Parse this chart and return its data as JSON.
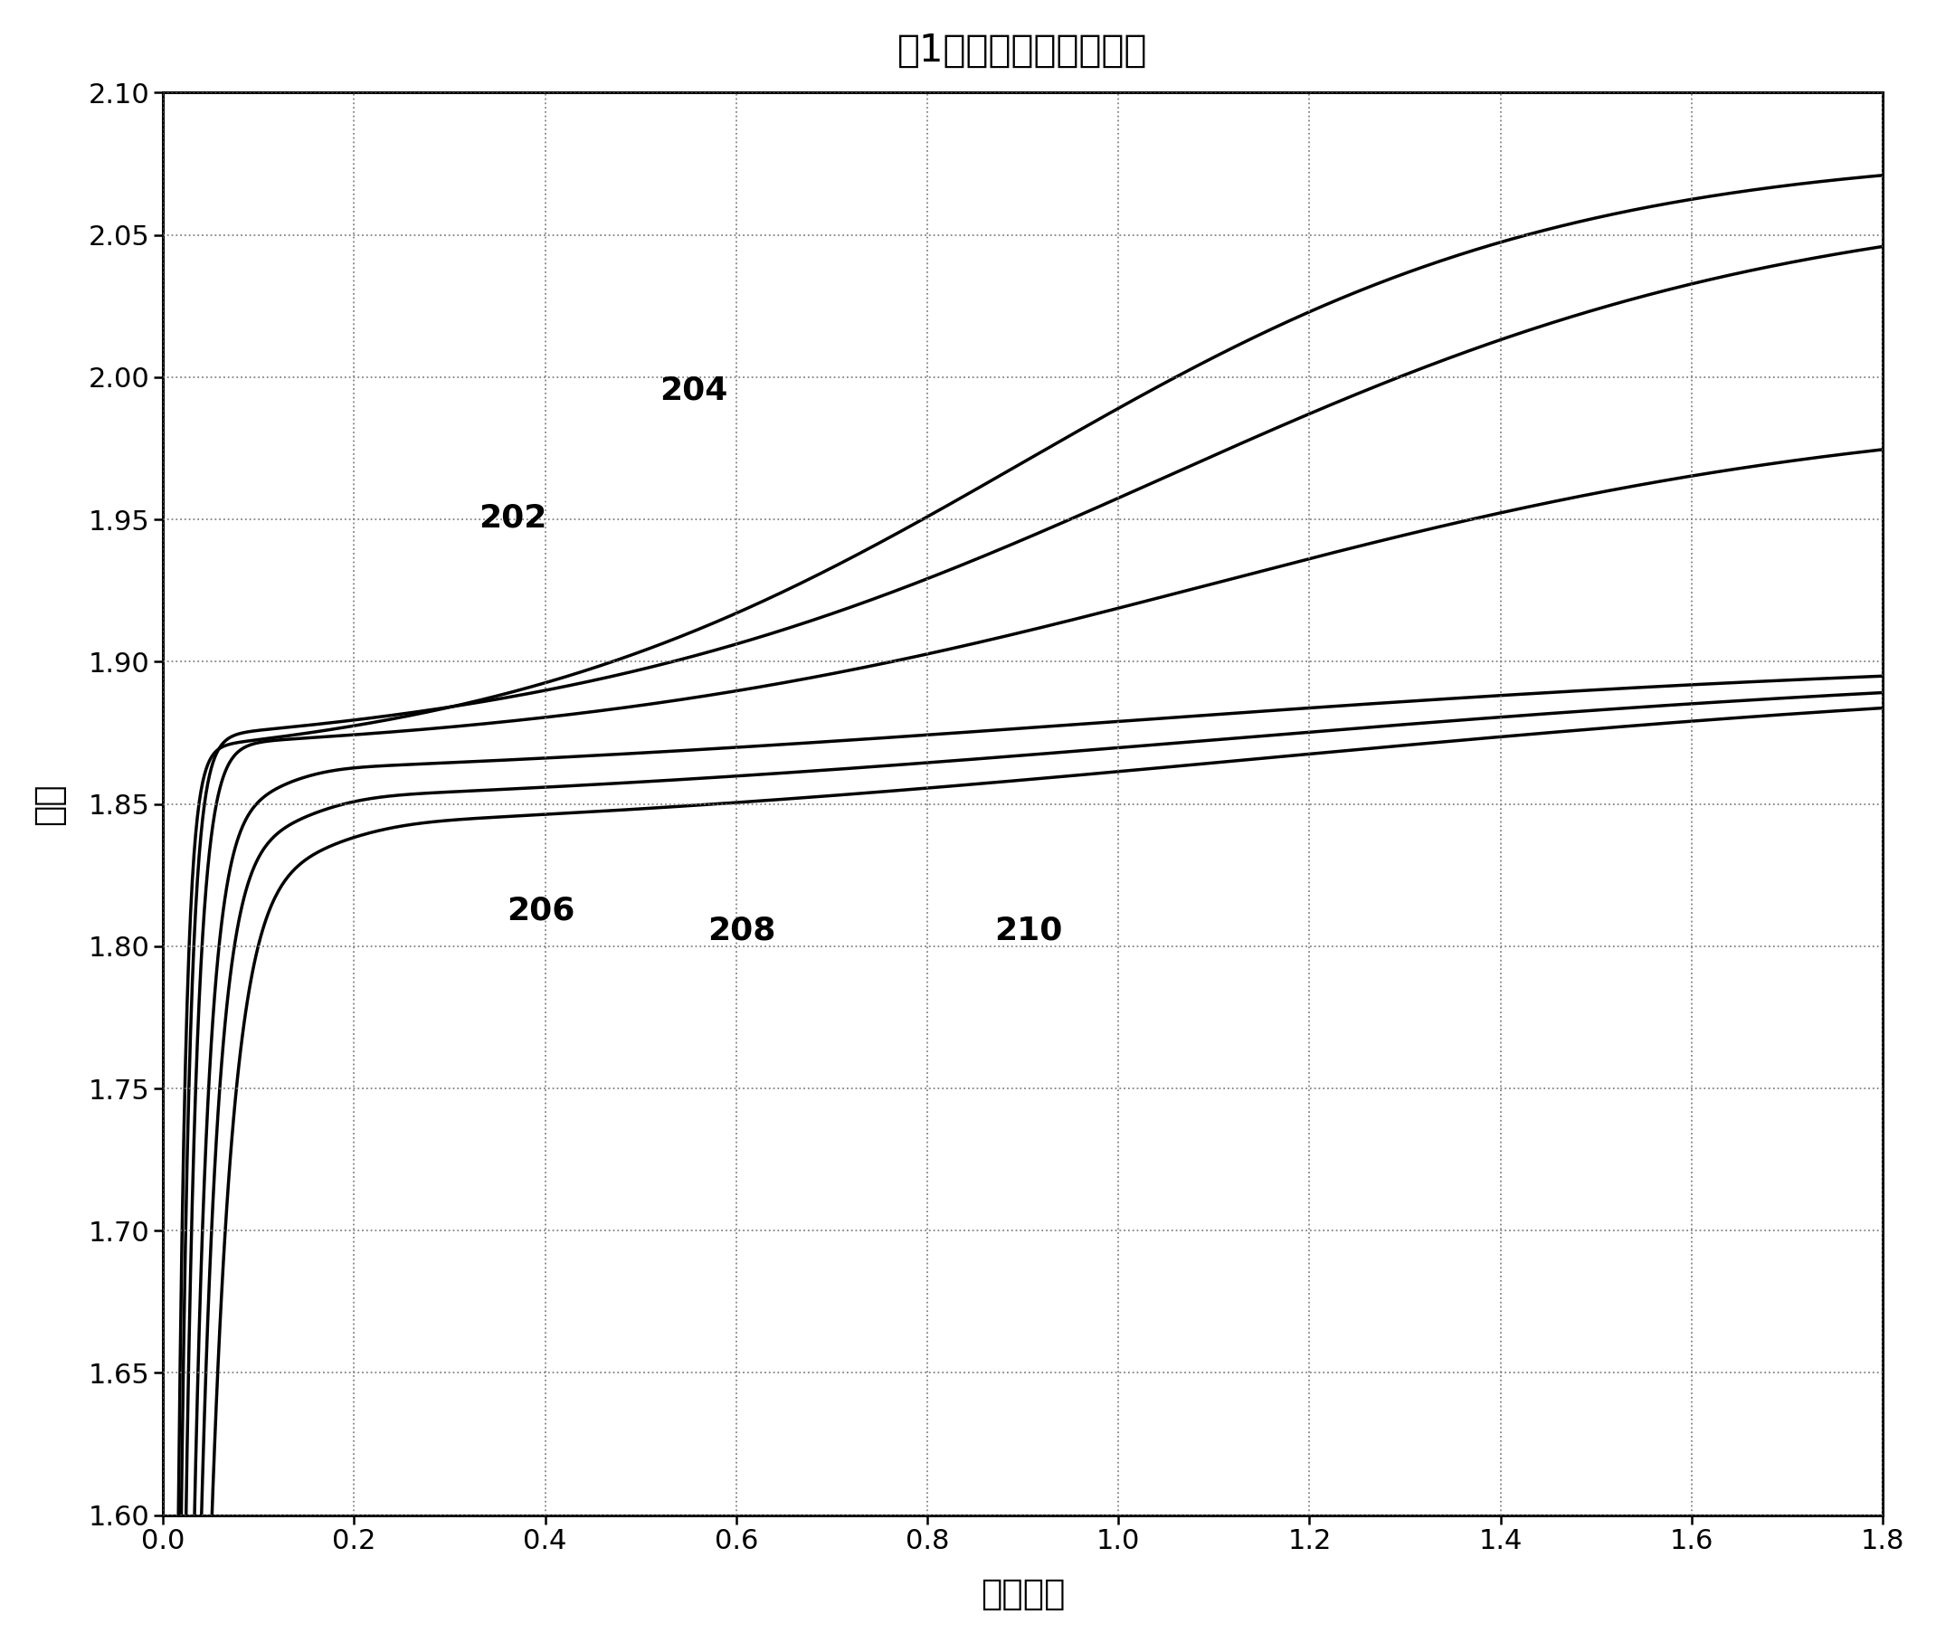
{
  "title": "以1安培的恒定电流充电",
  "xlabel": "充电安时",
  "ylabel": "电压",
  "xlim": [
    0,
    1.8
  ],
  "ylim": [
    1.6,
    2.1
  ],
  "xticks": [
    0,
    0.2,
    0.4,
    0.6,
    0.8,
    1.0,
    1.2,
    1.4,
    1.6,
    1.8
  ],
  "yticks": [
    1.6,
    1.65,
    1.7,
    1.75,
    1.8,
    1.85,
    1.9,
    1.95,
    2.0,
    2.05,
    2.1
  ],
  "label_202": [
    0.33,
    1.945
  ],
  "label_204": [
    0.52,
    1.99
  ],
  "label_206": [
    0.36,
    1.807
  ],
  "label_208": [
    0.57,
    1.8
  ],
  "label_210": [
    0.87,
    1.8
  ],
  "background_color": "#ffffff",
  "line_color": "#000000",
  "grid_color": "#777777"
}
